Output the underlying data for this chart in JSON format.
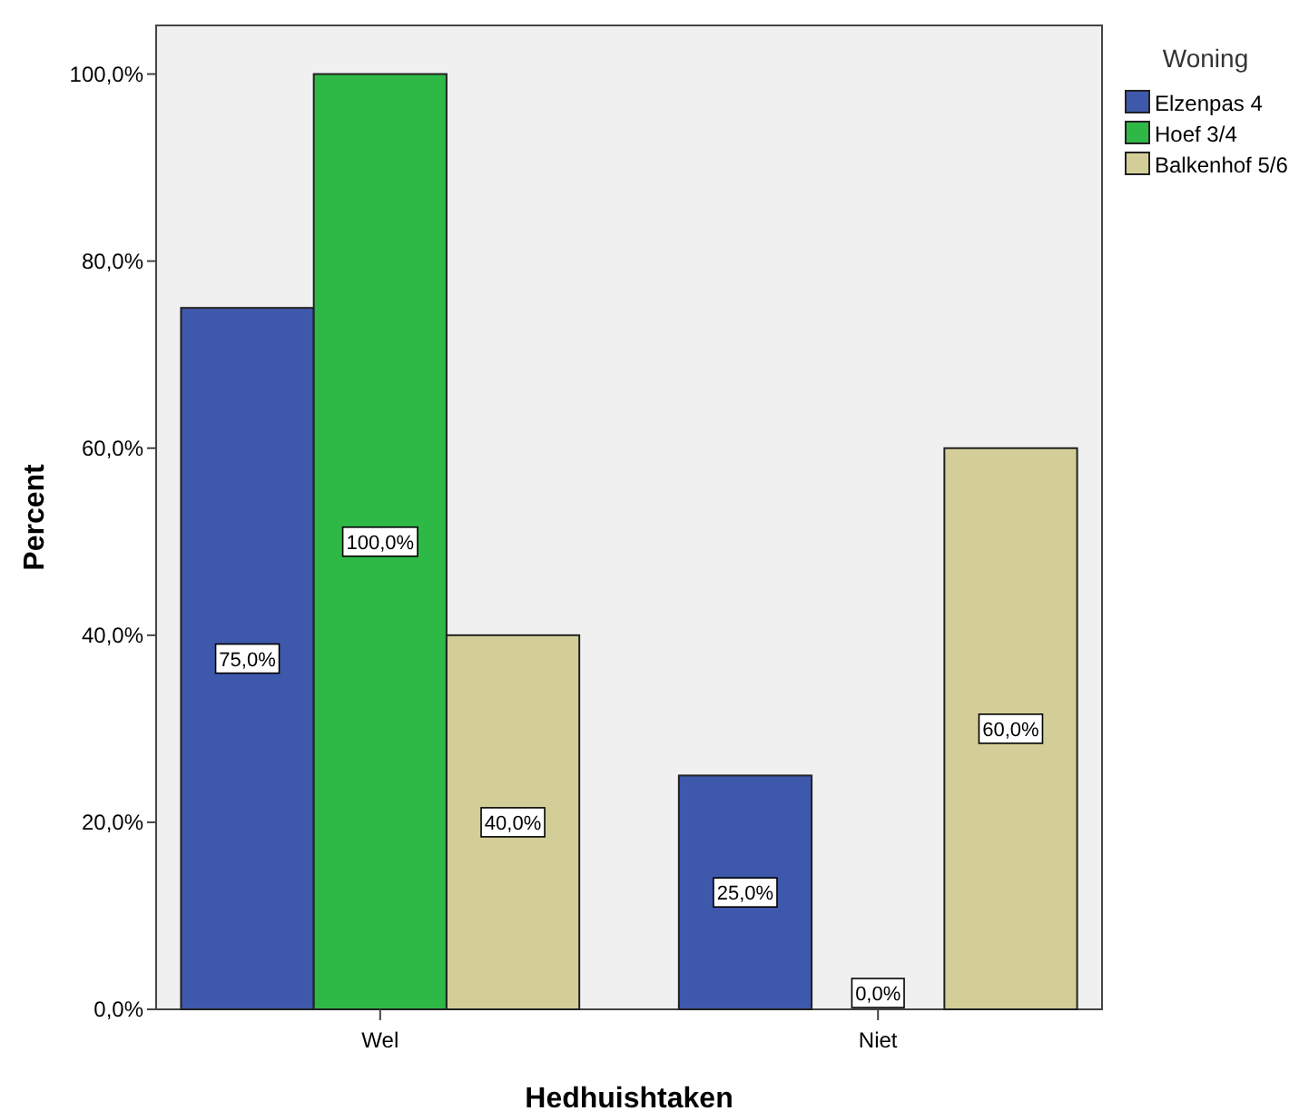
{
  "chart_data": {
    "type": "bar",
    "xlabel": "Hedhuishtaken",
    "ylabel": "Percent",
    "legend_title": "Woning",
    "legend": "top right",
    "grid": false,
    "categories": [
      "Wel",
      "Niet"
    ],
    "series": [
      {
        "name": "Elzenpas 4",
        "color": "#3e58ac",
        "values": [
          75,
          25
        ],
        "value_labels": [
          "75,0%",
          "25,0%"
        ]
      },
      {
        "name": "Hoef 3/4",
        "color": "#2eb846",
        "values": [
          100,
          0
        ],
        "value_labels": [
          "100,0%",
          "0,0%"
        ]
      },
      {
        "name": "Balkenhof 5/6",
        "color": "#d3ce97",
        "values": [
          40,
          60
        ],
        "value_labels": [
          "40,0%",
          "60,0%"
        ]
      }
    ],
    "ylim": [
      0,
      105.2
    ],
    "yticks": [
      {
        "value": 0,
        "label": "0,0%"
      },
      {
        "value": 20,
        "label": "20,0%"
      },
      {
        "value": 40,
        "label": "40,0%"
      },
      {
        "value": 60,
        "label": "60,0%"
      },
      {
        "value": 80,
        "label": "80,0%"
      },
      {
        "value": 100,
        "label": "100,0%"
      }
    ]
  }
}
